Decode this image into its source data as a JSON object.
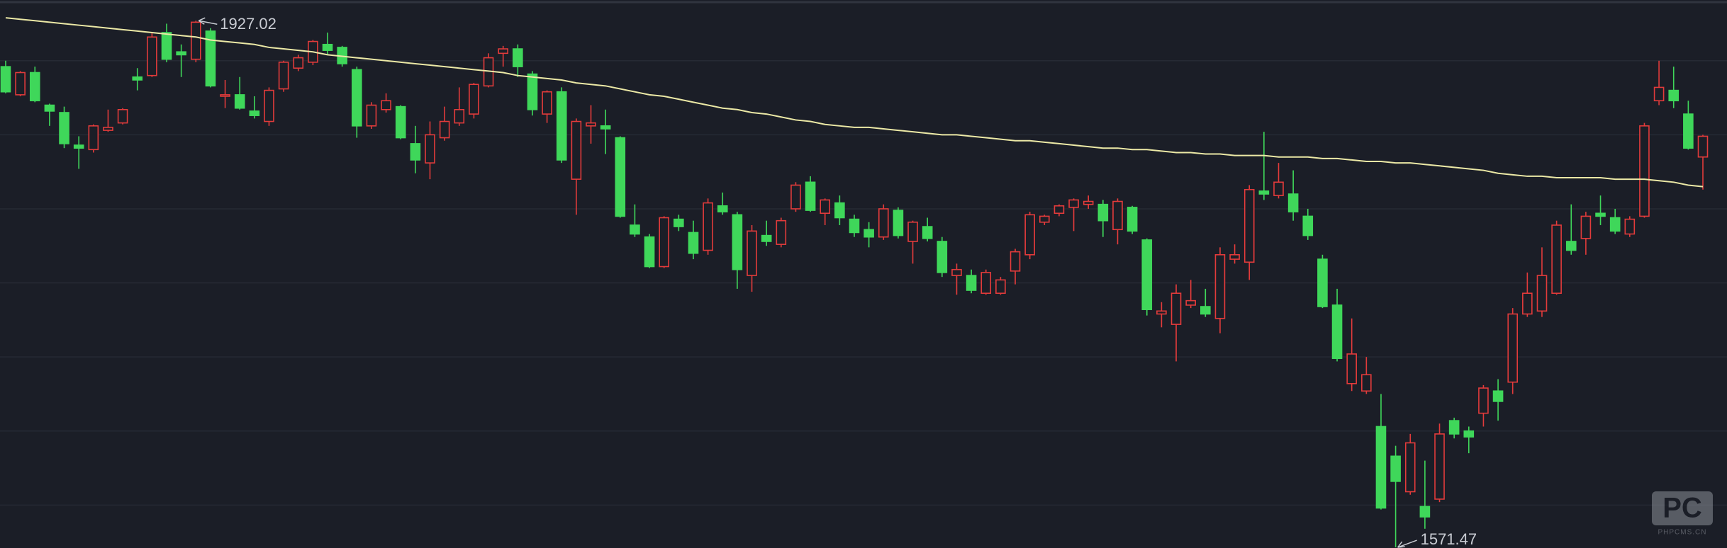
{
  "chart_data": {
    "type": "candlestick",
    "ylim": [
      1571,
      1941
    ],
    "yticks": [
      1600,
      1650,
      1700,
      1750,
      1800,
      1850,
      1900
    ],
    "grid": true,
    "up_color": "#e23b3b",
    "down_color": "#3fd75a",
    "open": [
      1896,
      1877,
      1892,
      1870,
      1865,
      1843,
      1840,
      1853,
      1858,
      1889,
      1890,
      1919,
      1906,
      1901,
      1920,
      1876,
      1877,
      1866,
      1859,
      1881,
      1895,
      1899,
      1911,
      1909,
      1894,
      1856,
      1867,
      1869,
      1844,
      1831,
      1848,
      1858,
      1864,
      1883,
      1905,
      1908,
      1891,
      1864,
      1879,
      1820,
      1856,
      1856,
      1848,
      1789,
      1781,
      1761,
      1793,
      1784,
      1772,
      1802,
      1796,
      1755,
      1782,
      1776,
      1800,
      1818,
      1797,
      1804,
      1793,
      1786,
      1781,
      1799,
      1778,
      1788,
      1778,
      1755,
      1755,
      1743,
      1743,
      1758,
      1769,
      1791,
      1797,
      1801,
      1803,
      1803,
      1786,
      1801,
      1779,
      1729,
      1722,
      1735,
      1734,
      1726,
      1766,
      1764,
      1812,
      1809,
      1810,
      1795,
      1766,
      1735,
      1682,
      1677,
      1653,
      1633,
      1609,
      1599,
      1604,
      1657,
      1650,
      1662,
      1677,
      1683,
      1729,
      1731,
      1743,
      1778,
      1780,
      1797,
      1794,
      1783,
      1795,
      1873,
      1880,
      1864,
      1835
    ],
    "high": [
      1900,
      1893,
      1896,
      1871,
      1869,
      1849,
      1857,
      1867,
      1868,
      1895,
      1919,
      1925,
      1911,
      1927.02,
      1922,
      1887,
      1889,
      1876,
      1882,
      1900,
      1904,
      1914,
      1919,
      1910,
      1896,
      1872,
      1878,
      1870,
      1856,
      1859,
      1869,
      1882,
      1885,
      1905,
      1910,
      1911,
      1893,
      1880,
      1882,
      1861,
      1870,
      1867,
      1849,
      1803,
      1783,
      1795,
      1796,
      1792,
      1807,
      1811,
      1798,
      1789,
      1792,
      1794,
      1818,
      1822,
      1807,
      1809,
      1796,
      1791,
      1803,
      1801,
      1792,
      1794,
      1781,
      1763,
      1759,
      1759,
      1754,
      1773,
      1798,
      1796,
      1803,
      1807,
      1809,
      1806,
      1807,
      1802,
      1780,
      1737,
      1749,
      1752,
      1746,
      1774,
      1776,
      1816,
      1852,
      1831,
      1826,
      1800,
      1769,
      1746,
      1726,
      1700,
      1675,
      1640,
      1648,
      1630,
      1655,
      1659,
      1653,
      1681,
      1685,
      1733,
      1757,
      1774,
      1792,
      1803,
      1798,
      1809,
      1800,
      1795,
      1858,
      1900,
      1896,
      1873,
      1850
    ],
    "low": [
      1878,
      1876,
      1872,
      1856,
      1841,
      1827,
      1838,
      1852,
      1857,
      1880,
      1889,
      1899,
      1889,
      1899,
      1882,
      1868,
      1867,
      1861,
      1856,
      1879,
      1893,
      1897,
      1904,
      1896,
      1848,
      1854,
      1865,
      1847,
      1824,
      1820,
      1846,
      1856,
      1861,
      1882,
      1896,
      1889,
      1863,
      1858,
      1831,
      1796,
      1844,
      1837,
      1794,
      1781,
      1760,
      1760,
      1785,
      1766,
      1769,
      1796,
      1746,
      1744,
      1775,
      1774,
      1798,
      1798,
      1789,
      1789,
      1781,
      1774,
      1779,
      1780,
      1763,
      1778,
      1754,
      1742,
      1743,
      1742,
      1742,
      1749,
      1766,
      1789,
      1795,
      1785,
      1800,
      1781,
      1776,
      1783,
      1728,
      1720,
      1697,
      1733,
      1727,
      1716,
      1763,
      1752,
      1806,
      1807,
      1792,
      1779,
      1733,
      1697,
      1677,
      1675,
      1597,
      1571.47,
      1607,
      1584,
      1602,
      1645,
      1635,
      1653,
      1657,
      1675,
      1727,
      1727,
      1742,
      1769,
      1769,
      1789,
      1783,
      1781,
      1794,
      1870,
      1868,
      1840,
      1813
    ],
    "close": [
      1879,
      1892,
      1873,
      1866,
      1844,
      1841,
      1856,
      1855,
      1867,
      1887,
      1916,
      1901,
      1904,
      1926,
      1883,
      1877,
      1868,
      1863,
      1880,
      1899,
      1902,
      1913,
      1907,
      1898,
      1856,
      1870,
      1873,
      1848,
      1833,
      1850,
      1859,
      1867,
      1884,
      1902,
      1908,
      1896,
      1867,
      1879,
      1833,
      1859,
      1858,
      1854,
      1795,
      1783,
      1761,
      1794,
      1788,
      1770,
      1804,
      1798,
      1759,
      1785,
      1778,
      1792,
      1816,
      1799,
      1806,
      1794,
      1784,
      1781,
      1800,
      1782,
      1791,
      1780,
      1757,
      1759,
      1745,
      1757,
      1752,
      1771,
      1796,
      1795,
      1802,
      1806,
      1805,
      1792,
      1805,
      1785,
      1732,
      1731,
      1743,
      1738,
      1729,
      1769,
      1769,
      1813,
      1810,
      1818,
      1798,
      1782,
      1734,
      1699,
      1702,
      1688,
      1598,
      1616,
      1642,
      1592,
      1648,
      1648,
      1646,
      1679,
      1670,
      1729,
      1743,
      1755,
      1789,
      1772,
      1795,
      1795,
      1785,
      1793,
      1856,
      1882,
      1873,
      1841,
      1849
    ],
    "ma": {
      "color": "#ece9a6",
      "values": [
        1929,
        1928,
        1927,
        1926,
        1925,
        1924,
        1923,
        1922,
        1921,
        1920,
        1919,
        1918,
        1917,
        1916,
        1914,
        1913,
        1912,
        1911,
        1909,
        1908,
        1907,
        1906,
        1904,
        1903,
        1902,
        1901,
        1900,
        1899,
        1898,
        1897,
        1896,
        1895,
        1894,
        1893,
        1892,
        1890,
        1889,
        1888,
        1887,
        1885,
        1884,
        1883,
        1881,
        1879,
        1877,
        1876,
        1874,
        1872,
        1870,
        1868,
        1867,
        1865,
        1864,
        1862,
        1860,
        1859,
        1857,
        1856,
        1855,
        1855,
        1854,
        1853,
        1852,
        1851,
        1850,
        1850,
        1849,
        1848,
        1847,
        1846,
        1846,
        1845,
        1844,
        1843,
        1842,
        1841,
        1841,
        1840,
        1840,
        1839,
        1838,
        1838,
        1837,
        1837,
        1836,
        1836,
        1836,
        1835,
        1835,
        1835,
        1834,
        1834,
        1833,
        1832,
        1832,
        1831,
        1831,
        1830,
        1829,
        1828,
        1827,
        1826,
        1824,
        1823,
        1822,
        1822,
        1821,
        1821,
        1821,
        1821,
        1820,
        1820,
        1820,
        1819,
        1818,
        1816,
        1815
      ]
    }
  },
  "watermark": {
    "logo": "PC",
    "text": "PHPCMS.CN"
  }
}
